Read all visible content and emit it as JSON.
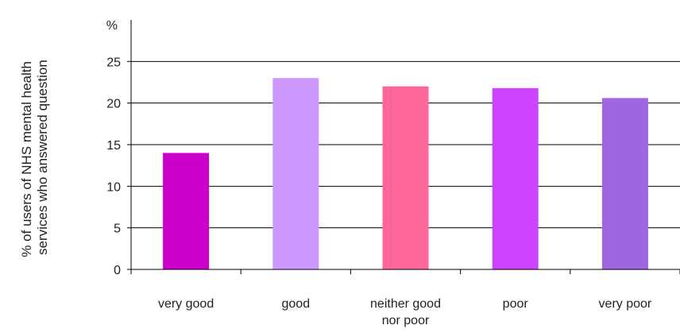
{
  "chart_data": {
    "type": "bar",
    "ylabel_lines": [
      "% of users of NHS mental health",
      "services who answered question"
    ],
    "y_unit": "%",
    "categories": [
      [
        "very good"
      ],
      [
        "good"
      ],
      [
        "neither good",
        "nor poor"
      ],
      [
        "poor"
      ],
      [
        "very poor"
      ]
    ],
    "values": [
      14,
      23,
      22,
      21.8,
      20.6
    ],
    "colors": [
      "#CC00CC",
      "#CC99FF",
      "#FF6699",
      "#CC44FF",
      "#A066E0"
    ],
    "ylim": [
      0,
      30
    ],
    "yticks": [
      0,
      5,
      10,
      15,
      20,
      25
    ],
    "grid": true,
    "legend": "none"
  }
}
